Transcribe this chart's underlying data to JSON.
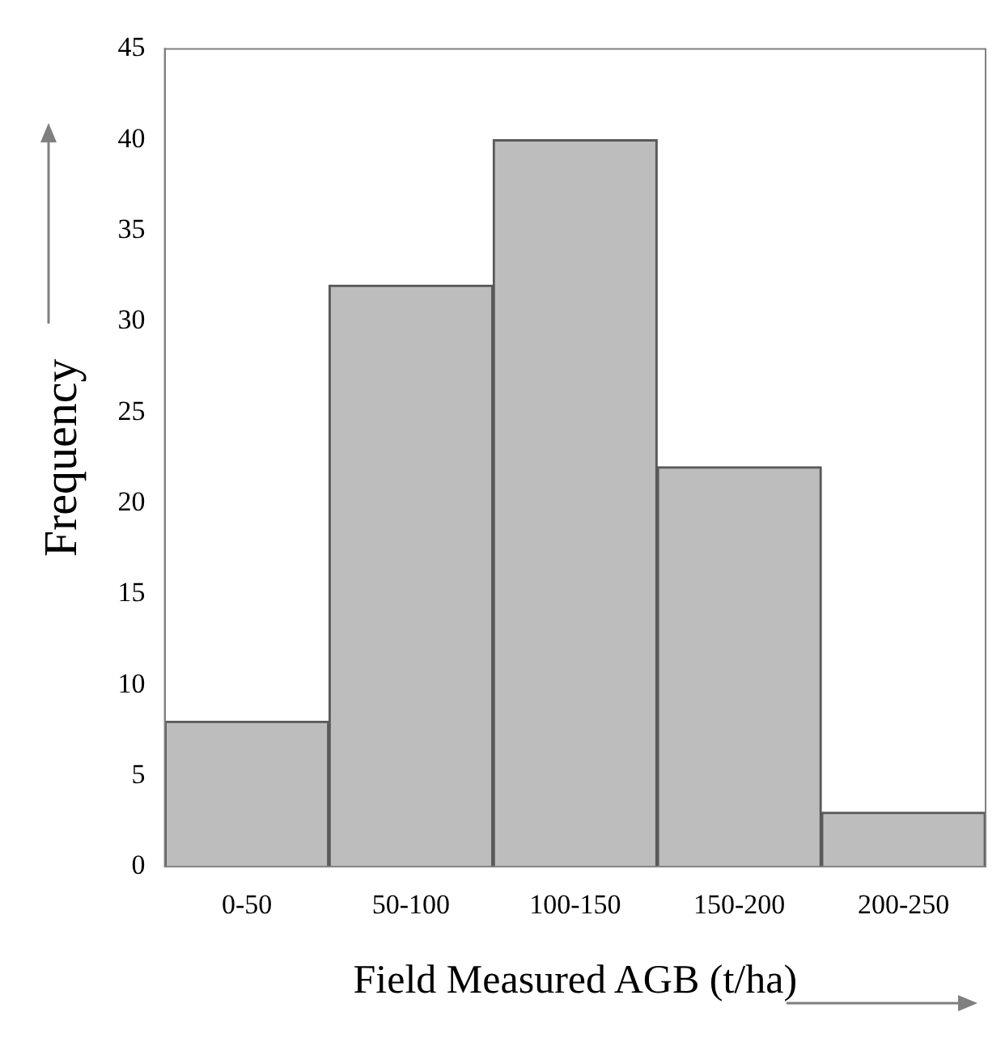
{
  "chart_data": {
    "type": "bar",
    "xlabel": "Field Measured AGB (t/ha)",
    "ylabel": "Frequency",
    "categories": [
      "0-50",
      "50-100",
      "100-150",
      "150-200",
      "200-250"
    ],
    "values": [
      8,
      32,
      40,
      22,
      3
    ],
    "color": "#bdbdbd",
    "ylim": [
      0,
      45
    ],
    "yticks": [
      0,
      5,
      10,
      15,
      20,
      25,
      30,
      35,
      40,
      45
    ],
    "grid": false,
    "legend": false
  }
}
